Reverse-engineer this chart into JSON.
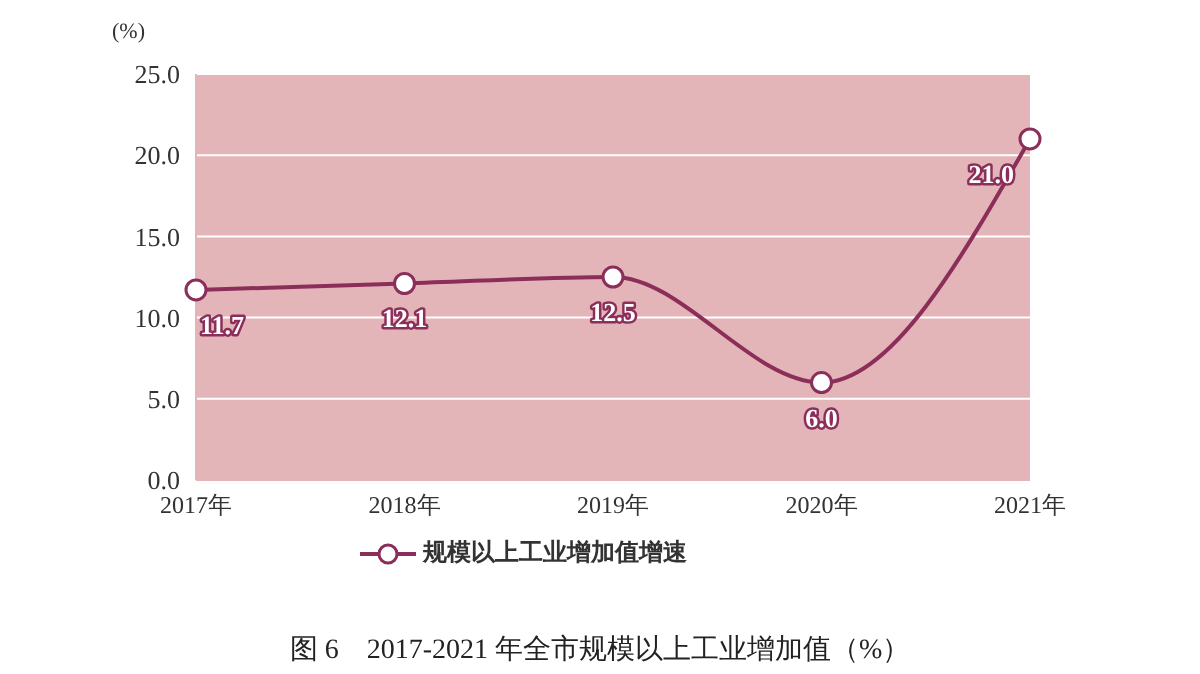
{
  "chart_data": {
    "type": "line",
    "title": "图 6　2017-2021 年全市规模以上工业增加值（%）",
    "ylabel": "(%)",
    "categories": [
      "2017年",
      "2018年",
      "2019年",
      "2020年",
      "2021年"
    ],
    "series": [
      {
        "name": "规模以上工业增加值增速",
        "color": "#8b2f5a",
        "values": [
          11.7,
          12.1,
          12.5,
          6.0,
          21.0
        ],
        "value_labels": [
          "11.7",
          "12.1",
          "12.5",
          "6.0",
          "21.0"
        ]
      }
    ],
    "ylim": [
      0,
      25
    ],
    "yticks": [
      {
        "value": 0,
        "label": "0.0"
      },
      {
        "value": 5,
        "label": "5.0"
      },
      {
        "value": 10,
        "label": "10.0"
      },
      {
        "value": 15,
        "label": "15.0"
      },
      {
        "value": 20,
        "label": "20.0"
      },
      {
        "value": 25,
        "label": "25.0"
      }
    ],
    "grid": "y",
    "legend": "bottom",
    "marker": "circle"
  }
}
